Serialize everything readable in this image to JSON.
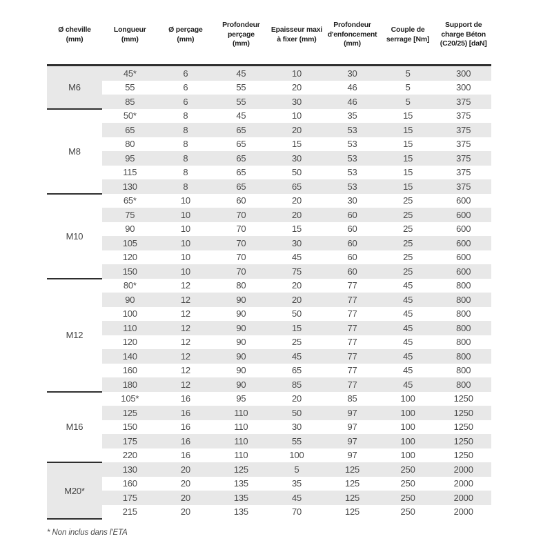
{
  "page": {
    "background_color": "#ffffff",
    "rule_color": "#2e2e2e",
    "row_shade_color": "#e8e8e8",
    "text_color": "#4a4a4a",
    "header_text_color": "#1e1e1e"
  },
  "table": {
    "headers": [
      {
        "id": "cheville",
        "lines": [
          "Ø cheville",
          "(mm)"
        ]
      },
      {
        "id": "longueur",
        "lines": [
          "Longueur",
          "(mm)"
        ]
      },
      {
        "id": "percage",
        "lines": [
          "Ø perçage",
          "(mm)"
        ]
      },
      {
        "id": "profondeur-percage",
        "lines": [
          "Profondeur",
          "perçage",
          "(mm)"
        ]
      },
      {
        "id": "epaisseur",
        "lines": [
          "Epaisseur maxi",
          "à fixer (mm)"
        ]
      },
      {
        "id": "enfoncement",
        "lines": [
          "Profondeur",
          "d'enfoncement",
          "(mm)"
        ]
      },
      {
        "id": "couple",
        "lines": [
          "Couple de",
          "serrage [Nm]"
        ]
      },
      {
        "id": "charge",
        "lines": [
          "Support de",
          "charge Béton",
          "(C20/25) [daN]"
        ]
      }
    ],
    "groups": [
      {
        "label": "M6",
        "rows": [
          [
            "45*",
            "6",
            "45",
            "10",
            "30",
            "5",
            "300"
          ],
          [
            "55",
            "6",
            "55",
            "20",
            "46",
            "5",
            "300"
          ],
          [
            "85",
            "6",
            "55",
            "30",
            "46",
            "5",
            "375"
          ]
        ]
      },
      {
        "label": "M8",
        "rows": [
          [
            "50*",
            "8",
            "45",
            "10",
            "35",
            "15",
            "375"
          ],
          [
            "65",
            "8",
            "65",
            "20",
            "53",
            "15",
            "375"
          ],
          [
            "80",
            "8",
            "65",
            "15",
            "53",
            "15",
            "375"
          ],
          [
            "95",
            "8",
            "65",
            "30",
            "53",
            "15",
            "375"
          ],
          [
            "115",
            "8",
            "65",
            "50",
            "53",
            "15",
            "375"
          ],
          [
            "130",
            "8",
            "65",
            "65",
            "53",
            "15",
            "375"
          ]
        ]
      },
      {
        "label": "M10",
        "rows": [
          [
            "65*",
            "10",
            "60",
            "20",
            "30",
            "25",
            "600"
          ],
          [
            "75",
            "10",
            "70",
            "20",
            "60",
            "25",
            "600"
          ],
          [
            "90",
            "10",
            "70",
            "15",
            "60",
            "25",
            "600"
          ],
          [
            "105",
            "10",
            "70",
            "30",
            "60",
            "25",
            "600"
          ],
          [
            "120",
            "10",
            "70",
            "45",
            "60",
            "25",
            "600"
          ],
          [
            "150",
            "10",
            "70",
            "75",
            "60",
            "25",
            "600"
          ]
        ]
      },
      {
        "label": "M12",
        "rows": [
          [
            "80*",
            "12",
            "80",
            "20",
            "77",
            "45",
            "800"
          ],
          [
            "90",
            "12",
            "90",
            "20",
            "77",
            "45",
            "800"
          ],
          [
            "100",
            "12",
            "90",
            "50",
            "77",
            "45",
            "800"
          ],
          [
            "110",
            "12",
            "90",
            "15",
            "77",
            "45",
            "800"
          ],
          [
            "120",
            "12",
            "90",
            "25",
            "77",
            "45",
            "800"
          ],
          [
            "140",
            "12",
            "90",
            "45",
            "77",
            "45",
            "800"
          ],
          [
            "160",
            "12",
            "90",
            "65",
            "77",
            "45",
            "800"
          ],
          [
            "180",
            "12",
            "90",
            "85",
            "77",
            "45",
            "800"
          ]
        ]
      },
      {
        "label": "M16",
        "rows": [
          [
            "105*",
            "16",
            "95",
            "20",
            "85",
            "100",
            "1250"
          ],
          [
            "125",
            "16",
            "110",
            "50",
            "97",
            "100",
            "1250"
          ],
          [
            "150",
            "16",
            "110",
            "30",
            "97",
            "100",
            "1250"
          ],
          [
            "175",
            "16",
            "110",
            "55",
            "97",
            "100",
            "1250"
          ],
          [
            "220",
            "16",
            "110",
            "100",
            "97",
            "100",
            "1250"
          ]
        ]
      },
      {
        "label": "M20*",
        "rows": [
          [
            "130",
            "20",
            "125",
            "5",
            "125",
            "250",
            "2000"
          ],
          [
            "160",
            "20",
            "135",
            "35",
            "125",
            "250",
            "2000"
          ],
          [
            "175",
            "20",
            "135",
            "45",
            "125",
            "250",
            "2000"
          ],
          [
            "215",
            "20",
            "135",
            "70",
            "125",
            "250",
            "2000"
          ]
        ]
      }
    ],
    "footnote": "* Non inclus dans l'ETA"
  }
}
